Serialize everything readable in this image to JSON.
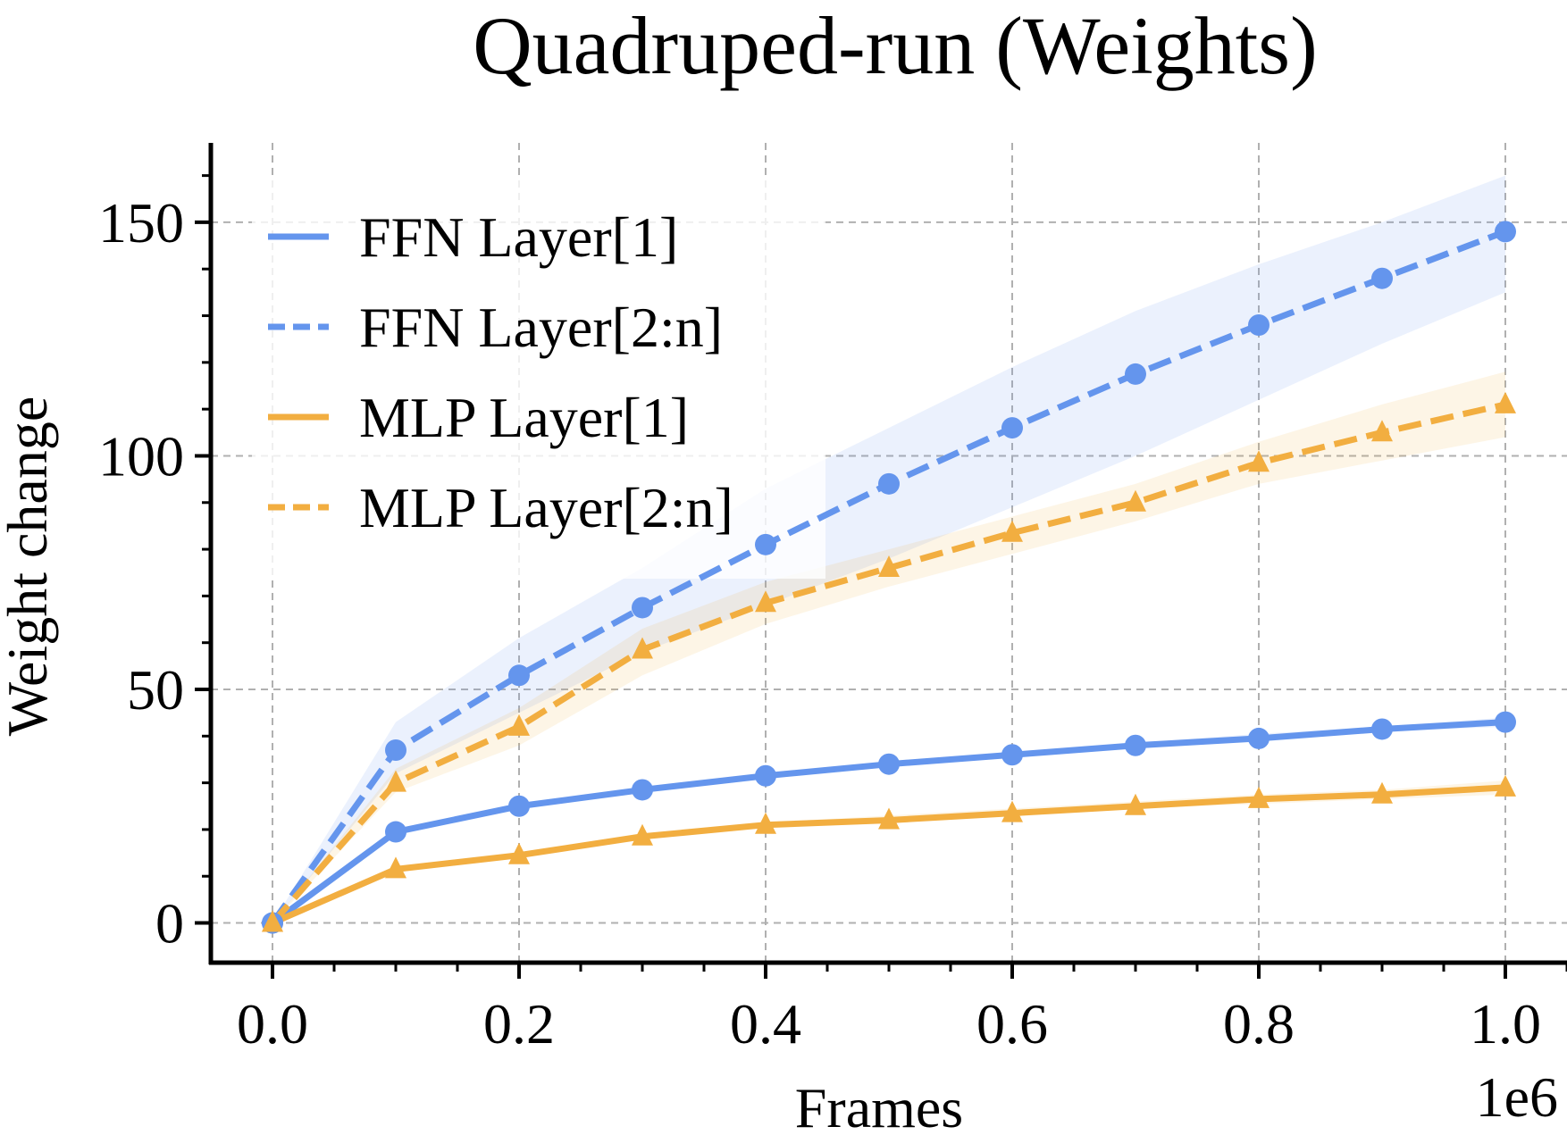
{
  "chart_data": {
    "type": "line",
    "title": "Quadruped-run (Weights)",
    "xlabel": "Frames",
    "ylabel": "Weight change",
    "x_offset_text": "1e6",
    "xlim": [
      -0.05,
      1.05
    ],
    "ylim": [
      -8.5,
      167
    ],
    "x_ticks": [
      0.0,
      0.2,
      0.4,
      0.6,
      0.8,
      1.0
    ],
    "x_tick_labels": [
      "0.0",
      "0.2",
      "0.4",
      "0.6",
      "0.8",
      "1.0"
    ],
    "y_ticks": [
      0,
      50,
      100,
      150
    ],
    "y_tick_labels": [
      "0",
      "50",
      "100",
      "150"
    ],
    "x_minor_step": 0.05,
    "y_minor_step": 10,
    "grid": true,
    "legend_position": "upper-left",
    "x": [
      0.0,
      0.1,
      0.2,
      0.3,
      0.4,
      0.5,
      0.6,
      0.7,
      0.8,
      0.9,
      1.0
    ],
    "series": [
      {
        "name": "FFN Layer[1]",
        "color": "#6495ED",
        "linestyle": "solid",
        "marker": "circle",
        "values": [
          0,
          19.5,
          25,
          28.5,
          31.5,
          34,
          36,
          38,
          39.5,
          41.5,
          43
        ],
        "band_lower": [
          0,
          19,
          24.5,
          28,
          31,
          33.5,
          35.5,
          37.5,
          39,
          41,
          42
        ],
        "band_upper": [
          0,
          20,
          25.5,
          29,
          32,
          34.5,
          36.5,
          38.5,
          40.5,
          42,
          44
        ]
      },
      {
        "name": "FFN Layer[2:n]",
        "color": "#6495ED",
        "linestyle": "dashed",
        "marker": "circle",
        "values": [
          0,
          37,
          53,
          67.5,
          81,
          94,
          106,
          117.5,
          128,
          138,
          148
        ],
        "band_lower": [
          0,
          32,
          45,
          58,
          68,
          78,
          89,
          100,
          112,
          124,
          135
        ],
        "band_upper": [
          0,
          43,
          61,
          76,
          93,
          106,
          119,
          131,
          141,
          150,
          160
        ]
      },
      {
        "name": "MLP Layer[1]",
        "color": "#F2AE40",
        "linestyle": "solid",
        "marker": "triangle",
        "values": [
          0,
          11.5,
          14.5,
          18.5,
          21,
          22,
          23.5,
          25,
          26.5,
          27.5,
          29
        ],
        "band_lower": [
          0,
          11,
          14,
          18,
          20.5,
          21.5,
          23,
          24.5,
          25.5,
          26.5,
          27.5
        ],
        "band_upper": [
          0,
          12,
          15,
          19,
          21.5,
          23,
          24.5,
          26,
          27.5,
          28.5,
          30.5
        ]
      },
      {
        "name": "MLP Layer[2:n]",
        "color": "#F2AE40",
        "linestyle": "dashed",
        "marker": "triangle",
        "values": [
          0,
          30,
          42,
          58.5,
          68.5,
          76,
          83.5,
          90,
          98.5,
          105,
          111
        ],
        "band_lower": [
          0,
          28,
          38,
          53,
          64,
          72,
          79,
          86,
          94,
          99,
          104
        ],
        "band_upper": [
          0,
          33,
          46,
          63,
          73,
          80,
          87,
          94,
          103,
          111,
          118
        ]
      }
    ]
  }
}
